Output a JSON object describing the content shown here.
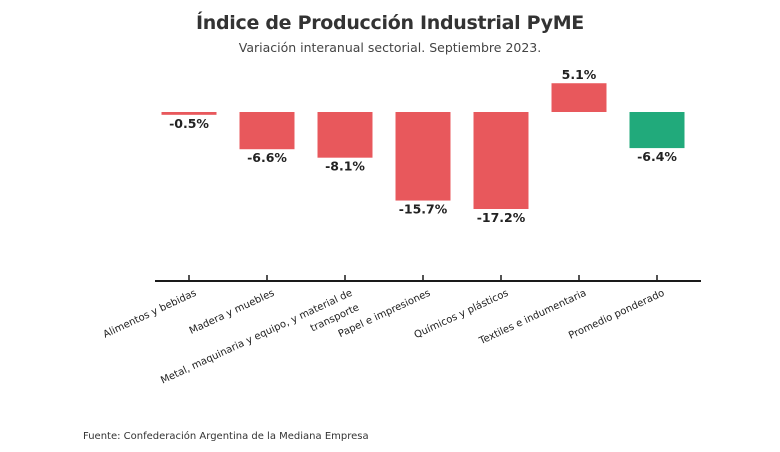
{
  "chart_data": {
    "type": "bar",
    "title": "Índice de Producción Industrial PyME",
    "subtitle": "Variación interanual sectorial. Septiembre 2023.",
    "source": "Fuente: Confederación Argentina de la Mediana Empresa",
    "xlabel": "",
    "ylabel": "",
    "ylim": [
      -17.2,
      5.1
    ],
    "grid": false,
    "legend": "none",
    "categories": [
      [
        "Alimentos y bebidas"
      ],
      [
        "Madera y muebles"
      ],
      [
        "Metal, maquinaria y equipo, y material de",
        "transporte"
      ],
      [
        "Papel e impresiones"
      ],
      [
        "Químicos y plásticos"
      ],
      [
        "Textiles e indumentaria"
      ],
      [
        "Promedio ponderado"
      ]
    ],
    "category_names": [
      "Alimentos y bebidas",
      "Madera y muebles",
      "Metal, maquinaria y equipo, y material de transporte",
      "Papel e impresiones",
      "Químicos y plásticos",
      "Textiles e indumentaria",
      "Promedio ponderado"
    ],
    "values": [
      -0.5,
      -6.6,
      -8.1,
      -15.7,
      -17.2,
      5.1,
      -6.4
    ],
    "labels": [
      "-0.5%",
      "-6.6%",
      "-8.1%",
      "-15.7%",
      "-17.2%",
      "5.1%",
      "-6.4%"
    ],
    "colors": [
      "#e8585c",
      "#e8585c",
      "#e8585c",
      "#e8585c",
      "#e8585c",
      "#e8585c",
      "#21aa7b"
    ]
  }
}
